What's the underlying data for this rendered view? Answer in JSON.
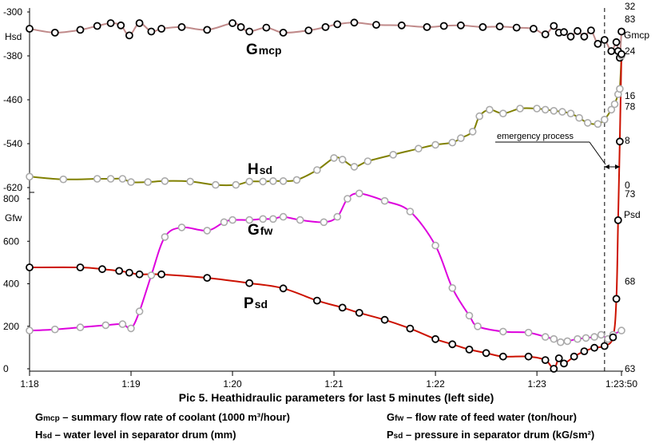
{
  "chart_data": {
    "type": "line",
    "caption": "Pic 5. Heathidraulic parameters for last 5 minutes (left side)",
    "x_ticks": [
      "1:18",
      "1:19",
      "1:20",
      "1:21",
      "1:22",
      "1:23",
      "1:23:50"
    ],
    "annotation": "emergency process",
    "axes": {
      "hsd": {
        "label": "Hsd",
        "ticks": [
          "-300",
          "-380",
          "-460",
          "-540",
          "-620"
        ],
        "ylim": [
          -620,
          -300
        ]
      },
      "gfw": {
        "label": "Gfw",
        "ticks": [
          "800",
          "600",
          "400",
          "200",
          "0"
        ],
        "ylim": [
          0,
          800
        ]
      },
      "gmcp": {
        "label": "Gmcp",
        "ticks": [
          "32",
          "24",
          "16",
          "8",
          "0"
        ],
        "ylim": [
          0,
          32
        ]
      },
      "psd": {
        "label": "Psd",
        "ticks": [
          "83",
          "78",
          "73",
          "68",
          "63"
        ],
        "ylim": [
          63,
          83
        ]
      }
    },
    "series": [
      {
        "name": "Gmcp",
        "label_main": "G",
        "label_sub": "mcp",
        "color": "#c08a8a",
        "marker": "black",
        "axis": "gmcp",
        "x": [
          "1:18:00",
          "1:18:15",
          "1:18:30",
          "1:18:40",
          "1:18:48",
          "1:18:54",
          "1:18:59",
          "1:19:05",
          "1:19:12",
          "1:19:18",
          "1:19:30",
          "1:19:45",
          "1:20:00",
          "1:20:05",
          "1:20:10",
          "1:20:20",
          "1:20:30",
          "1:20:45",
          "1:20:55",
          "1:21:02",
          "1:21:12",
          "1:21:25",
          "1:21:40",
          "1:21:55",
          "1:22:05",
          "1:22:15",
          "1:22:28",
          "1:22:38",
          "1:22:48",
          "1:22:58",
          "1:23:05",
          "1:23:10",
          "1:23:13",
          "1:23:16",
          "1:23:20",
          "1:23:24",
          "1:23:28",
          "1:23:32",
          "1:23:36",
          "1:23:40",
          "1:23:44",
          "1:23:47",
          "1:23:48",
          "1:23:49",
          "1:23:50"
        ],
        "y": [
          28.0,
          27.3,
          27.8,
          28.5,
          29.0,
          28.6,
          26.8,
          29.0,
          27.5,
          28.0,
          28.3,
          27.8,
          29.0,
          28.3,
          27.5,
          28.2,
          27.3,
          27.7,
          28.3,
          28.8,
          29.1,
          28.7,
          28.6,
          28.3,
          28.5,
          28.6,
          28.3,
          28.4,
          28.2,
          28.0,
          27.0,
          28.5,
          27.3,
          27.4,
          26.6,
          27.6,
          26.6,
          27.7,
          25.3,
          26.0,
          24.0,
          25.6,
          24.0,
          22.8,
          27.5
        ]
      },
      {
        "name": "Hsd",
        "label_main": "H",
        "label_sub": "sd",
        "color": "#808000",
        "marker": "grey",
        "axis": "hsd",
        "x": [
          "1:18:00",
          "1:18:20",
          "1:18:40",
          "1:18:48",
          "1:18:55",
          "1:19:00",
          "1:19:10",
          "1:19:20",
          "1:19:35",
          "1:19:50",
          "1:20:02",
          "1:20:10",
          "1:20:18",
          "1:20:24",
          "1:20:30",
          "1:20:38",
          "1:20:50",
          "1:21:00",
          "1:21:05",
          "1:21:12",
          "1:21:20",
          "1:21:35",
          "1:21:50",
          "1:22:00",
          "1:22:10",
          "1:22:15",
          "1:22:22",
          "1:22:26",
          "1:22:32",
          "1:22:40",
          "1:22:50",
          "1:23:00",
          "1:23:05",
          "1:23:10",
          "1:23:15",
          "1:23:20",
          "1:23:25",
          "1:23:30",
          "1:23:36",
          "1:23:40",
          "1:23:44",
          "1:23:46",
          "1:23:48",
          "1:23:49",
          "1:23:50"
        ],
        "y": [
          -600,
          -605,
          -604,
          -604,
          -604,
          -610,
          -610,
          -608,
          -609,
          -615,
          -615,
          -609,
          -609,
          -608,
          -608,
          -606,
          -588,
          -566,
          -569,
          -582,
          -572,
          -560,
          -549,
          -542,
          -538,
          -530,
          -518,
          -490,
          -478,
          -485,
          -476,
          -476,
          -478,
          -480,
          -482,
          -485,
          -493,
          -502,
          -504,
          -496,
          -478,
          -468,
          -450,
          -440,
          -380
        ]
      },
      {
        "name": "Gfw",
        "label_main": "G",
        "label_sub": "fw",
        "color": "#dd00dd",
        "marker": "grey",
        "axis": "gfw",
        "x": [
          "1:18:00",
          "1:18:15",
          "1:18:30",
          "1:18:45",
          "1:18:55",
          "1:19:00",
          "1:19:05",
          "1:19:12",
          "1:19:20",
          "1:19:30",
          "1:19:45",
          "1:19:55",
          "1:20:00",
          "1:20:10",
          "1:20:18",
          "1:20:24",
          "1:20:30",
          "1:20:40",
          "1:20:54",
          "1:21:02",
          "1:21:08",
          "1:21:15",
          "1:21:30",
          "1:21:45",
          "1:22:00",
          "1:22:10",
          "1:22:20",
          "1:22:25",
          "1:22:40",
          "1:22:55",
          "1:23:05",
          "1:23:10",
          "1:23:14",
          "1:23:18",
          "1:23:24",
          "1:23:29",
          "1:23:34",
          "1:23:38",
          "1:23:42",
          "1:23:45",
          "1:23:50"
        ],
        "y": [
          180,
          185,
          195,
          205,
          210,
          190,
          270,
          440,
          620,
          665,
          650,
          690,
          700,
          700,
          705,
          705,
          715,
          700,
          690,
          715,
          800,
          825,
          790,
          740,
          580,
          380,
          250,
          200,
          175,
          170,
          150,
          140,
          125,
          130,
          140,
          145,
          150,
          160,
          140,
          160,
          180
        ]
      },
      {
        "name": "Psd",
        "label_main": "P",
        "label_sub": "sd",
        "color": "#cc1100",
        "marker": "black",
        "axis": "psd",
        "x": [
          "1:18:00",
          "1:18:30",
          "1:18:43",
          "1:18:53",
          "1:18:59",
          "1:19:05",
          "1:19:18",
          "1:19:45",
          "1:20:10",
          "1:20:30",
          "1:20:50",
          "1:21:05",
          "1:21:15",
          "1:21:30",
          "1:21:45",
          "1:22:00",
          "1:22:10",
          "1:22:20",
          "1:22:30",
          "1:22:40",
          "1:22:55",
          "1:23:05",
          "1:23:10",
          "1:23:13",
          "1:23:16",
          "1:23:22",
          "1:23:28",
          "1:23:34",
          "1:23:40",
          "1:23:45",
          "1:23:47",
          "1:23:48",
          "1:23:49",
          "1:23:50"
        ],
        "y": [
          68.8,
          68.8,
          68.7,
          68.6,
          68.5,
          68.4,
          68.4,
          68.2,
          67.9,
          67.6,
          66.9,
          66.5,
          66.2,
          65.8,
          65.3,
          64.7,
          64.4,
          64.1,
          63.9,
          63.7,
          63.7,
          63.5,
          63.0,
          63.6,
          63.3,
          63.7,
          64.0,
          64.2,
          64.3,
          64.8,
          67.0,
          71.5,
          76.0,
          81.0
        ]
      }
    ],
    "legend": [
      {
        "main": "G",
        "sub": "mcp",
        "text": " – summary flow rate of coolant (1000 m³/hour)"
      },
      {
        "main": "G",
        "sub": "fw",
        "text": " – flow rate of feed water (ton/hour)"
      },
      {
        "main": "H",
        "sub": "sd",
        "text": " – water level in separator drum (mm)"
      },
      {
        "main": "P",
        "sub": "sd",
        "text": " – pressure in separator drum (kG/sm²)"
      }
    ],
    "grid": false,
    "legend_placement": "bottom"
  }
}
